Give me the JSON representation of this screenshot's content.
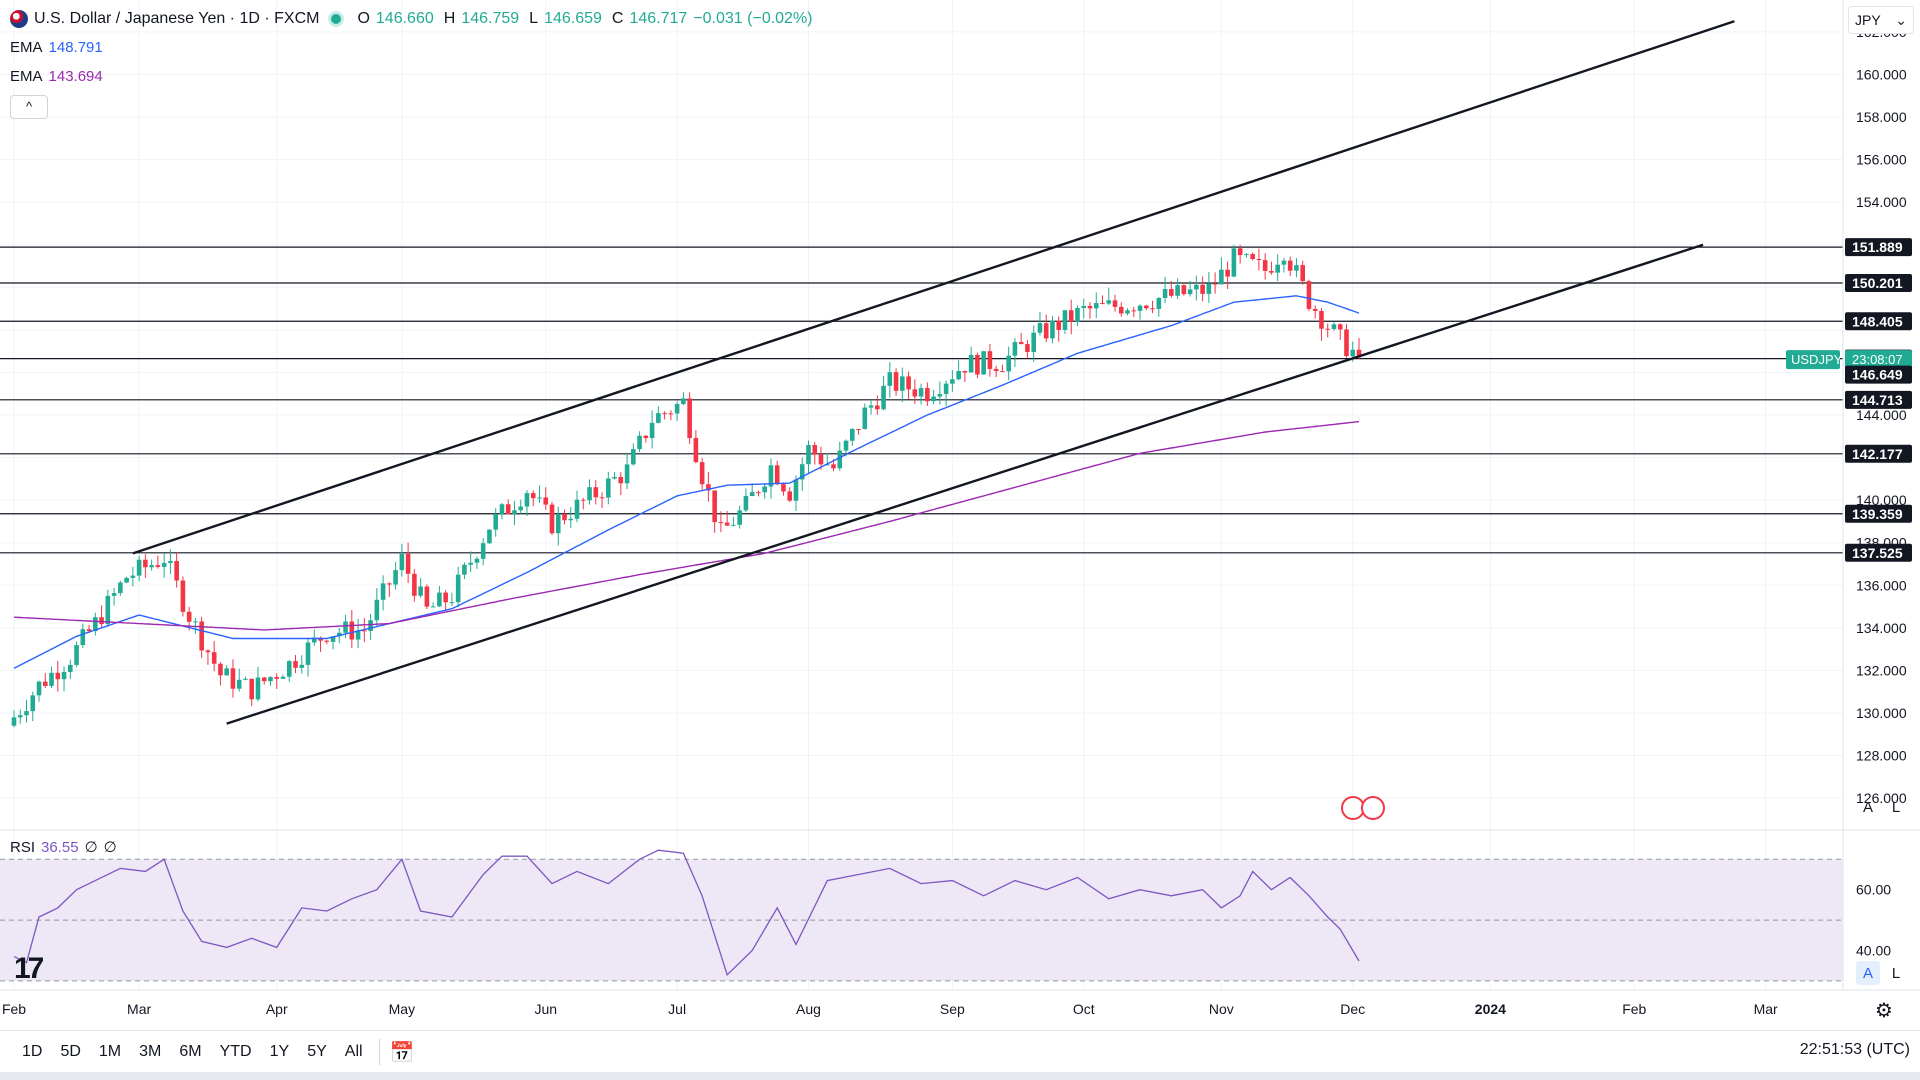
{
  "legend": {
    "title": "U.S. Dollar / Japanese Yen · 1D · FXCM",
    "open_label": "O",
    "open": "146.660",
    "high_label": "H",
    "high": "146.759",
    "low_label": "L",
    "low": "146.659",
    "close_label": "C",
    "close": "146.717",
    "change": "−0.031 (−0.02%)",
    "ema1_label": "EMA",
    "ema1_value": "148.791",
    "ema2_label": "EMA",
    "ema2_value": "143.694",
    "collapse_glyph": "^",
    "flag_icon": "us-japan-flag-icon"
  },
  "currency": {
    "value": "JPY",
    "arrow": "⌄"
  },
  "rsi_legend": {
    "label": "RSI",
    "value": "36.55",
    "extra1": "∅",
    "extra2": "∅"
  },
  "logo": {
    "text": "17"
  },
  "scale_buttons": {
    "a": "A",
    "l": "L"
  },
  "bottom": {
    "ranges": [
      "1D",
      "5D",
      "1M",
      "3M",
      "6M",
      "YTD",
      "1Y",
      "5Y",
      "All"
    ],
    "clock": "22:51:53 (UTC)"
  },
  "colors": {
    "up": "#22ab94",
    "down": "#f23645",
    "ema_fast": "#2962ff",
    "ema_slow": "#9c27b0",
    "rsi": "#7e57c2",
    "rsi_band": "#ede7f6",
    "price_tag": "#22ab94",
    "level_tag": "#131722"
  },
  "chart_data": [
    {
      "type": "candlestick",
      "title": "U.S. Dollar / Japanese Yen · 1D · FXCM",
      "symbol": "USDJPY",
      "current_price_label": "146.649",
      "current_price": 146.65,
      "countdown": "23:08:07",
      "ylim": [
        124.5,
        163.5
      ],
      "y_ticks": [
        126,
        128,
        130,
        132,
        134,
        136,
        138,
        140,
        142,
        144,
        146,
        148,
        150,
        152,
        154,
        156,
        158,
        160,
        162
      ],
      "y_tick_labels": [
        "126.000",
        "128.000",
        "130.000",
        "132.000",
        "134.000",
        "136.000",
        "138.000",
        "140.000",
        "142.000",
        "144.000",
        "146.000",
        "148.000",
        "150.000",
        "152.000",
        "154.000",
        "156.000",
        "158.000",
        "160.000",
        "162.000"
      ],
      "x_month_labels": [
        "Feb",
        "Mar",
        "Apr",
        "May",
        "Jun",
        "Jul",
        "Aug",
        "Sep",
        "Oct",
        "Nov",
        "Dec",
        "2024",
        "Feb",
        "Mar"
      ],
      "x_month_day_index": [
        0,
        20,
        42,
        62,
        85,
        106,
        127,
        150,
        171,
        193,
        214,
        236,
        259,
        280
      ],
      "total_days": 290,
      "horizontal_levels": [
        151.889,
        150.201,
        148.405,
        146.649,
        144.713,
        142.177,
        139.359,
        137.525
      ],
      "horizontal_level_labels": [
        "151.889",
        "150.201",
        "148.405",
        "146.649",
        "144.713",
        "142.177",
        "139.359",
        "137.525"
      ],
      "trendlines": [
        {
          "name": "upper-channel",
          "from": [
            19,
            137.5
          ],
          "to": [
            275,
            162.5
          ]
        },
        {
          "name": "lower-channel",
          "from": [
            34,
            129.5
          ],
          "to": [
            270,
            152.0
          ]
        }
      ],
      "close_anchors": [
        [
          0,
          129.8
        ],
        [
          4,
          131.3
        ],
        [
          9,
          132.6
        ],
        [
          13,
          134.2
        ],
        [
          18,
          136.4
        ],
        [
          24,
          137.3
        ],
        [
          28,
          134.6
        ],
        [
          33,
          131.8
        ],
        [
          38,
          131.1
        ],
        [
          44,
          132.3
        ],
        [
          50,
          133.8
        ],
        [
          56,
          133.9
        ],
        [
          62,
          137.2
        ],
        [
          66,
          134.8
        ],
        [
          70,
          135.5
        ],
        [
          76,
          138.8
        ],
        [
          82,
          140.5
        ],
        [
          86,
          138.9
        ],
        [
          92,
          140.1
        ],
        [
          98,
          141.4
        ],
        [
          102,
          143.8
        ],
        [
          107,
          144.6
        ],
        [
          110,
          141.2
        ],
        [
          113,
          138.4
        ],
        [
          117,
          139.7
        ],
        [
          121,
          141.6
        ],
        [
          124,
          140.4
        ],
        [
          127,
          142.4
        ],
        [
          131,
          141.5
        ],
        [
          136,
          144.1
        ],
        [
          140,
          145.5
        ],
        [
          146,
          145.1
        ],
        [
          152,
          146.4
        ],
        [
          158,
          146.5
        ],
        [
          164,
          147.8
        ],
        [
          171,
          148.9
        ],
        [
          178,
          149.2
        ],
        [
          185,
          149.6
        ],
        [
          191,
          149.9
        ],
        [
          195,
          151.3
        ],
        [
          200,
          150.8
        ],
        [
          203,
          151.8
        ],
        [
          207,
          149.4
        ],
        [
          210,
          148.2
        ],
        [
          212,
          147.5
        ],
        [
          215,
          146.72
        ]
      ],
      "series": [
        {
          "name": "EMA",
          "value_label": "148.791",
          "anchors": [
            [
              0,
              132.1
            ],
            [
              10,
              133.6
            ],
            [
              20,
              134.6
            ],
            [
              35,
              133.5
            ],
            [
              50,
              133.5
            ],
            [
              60,
              134.2
            ],
            [
              70,
              134.9
            ],
            [
              82,
              136.6
            ],
            [
              95,
              138.6
            ],
            [
              106,
              140.2
            ],
            [
              114,
              140.7
            ],
            [
              124,
              140.8
            ],
            [
              134,
              142.3
            ],
            [
              146,
              144.0
            ],
            [
              158,
              145.4
            ],
            [
              170,
              146.9
            ],
            [
              185,
              148.2
            ],
            [
              195,
              149.3
            ],
            [
              205,
              149.6
            ],
            [
              210,
              149.3
            ],
            [
              215,
              148.79
            ]
          ]
        },
        {
          "name": "EMA",
          "value_label": "143.694",
          "anchors": [
            [
              0,
              134.5
            ],
            [
              20,
              134.2
            ],
            [
              40,
              133.9
            ],
            [
              60,
              134.2
            ],
            [
              80,
              135.4
            ],
            [
              100,
              136.5
            ],
            [
              120,
              137.5
            ],
            [
              140,
              139.0
            ],
            [
              160,
              140.6
            ],
            [
              180,
              142.2
            ],
            [
              200,
              143.2
            ],
            [
              215,
              143.69
            ]
          ]
        }
      ]
    },
    {
      "type": "line",
      "title": "RSI",
      "value_label": "36.55",
      "ylim": [
        27,
        77
      ],
      "y_ticks": [
        40,
        60
      ],
      "y_tick_labels": [
        "40.00",
        "60.00"
      ],
      "bands": [
        30,
        50,
        70
      ],
      "anchors": [
        [
          0,
          38
        ],
        [
          2,
          36
        ],
        [
          4,
          51
        ],
        [
          7,
          54
        ],
        [
          10,
          60
        ],
        [
          13,
          63
        ],
        [
          17,
          67
        ],
        [
          21,
          66
        ],
        [
          24,
          70
        ],
        [
          27,
          53
        ],
        [
          30,
          43
        ],
        [
          34,
          41
        ],
        [
          38,
          44
        ],
        [
          42,
          41
        ],
        [
          46,
          54
        ],
        [
          50,
          53
        ],
        [
          54,
          57
        ],
        [
          58,
          60
        ],
        [
          62,
          70
        ],
        [
          65,
          53
        ],
        [
          70,
          51
        ],
        [
          75,
          65
        ],
        [
          78,
          71
        ],
        [
          82,
          71
        ],
        [
          86,
          62
        ],
        [
          90,
          66
        ],
        [
          95,
          62
        ],
        [
          100,
          70
        ],
        [
          103,
          73
        ],
        [
          107,
          72
        ],
        [
          110,
          58
        ],
        [
          114,
          32
        ],
        [
          118,
          40
        ],
        [
          122,
          54
        ],
        [
          125,
          42
        ],
        [
          130,
          63
        ],
        [
          135,
          65
        ],
        [
          140,
          67
        ],
        [
          145,
          62
        ],
        [
          150,
          63
        ],
        [
          155,
          58
        ],
        [
          160,
          63
        ],
        [
          165,
          60
        ],
        [
          170,
          64
        ],
        [
          175,
          57
        ],
        [
          180,
          60
        ],
        [
          185,
          58
        ],
        [
          190,
          60
        ],
        [
          193,
          54
        ],
        [
          196,
          58
        ],
        [
          198,
          66
        ],
        [
          201,
          60
        ],
        [
          204,
          64
        ],
        [
          207,
          58
        ],
        [
          210,
          51
        ],
        [
          212,
          47
        ],
        [
          215,
          36.55
        ]
      ]
    }
  ]
}
